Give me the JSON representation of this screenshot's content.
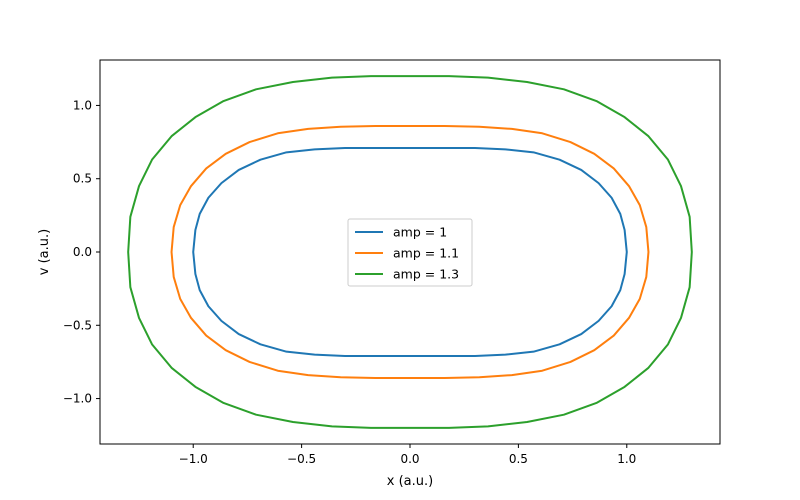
{
  "chart_data": {
    "type": "line",
    "title": "",
    "xlabel": "x (a.u.)",
    "ylabel": "v (a.u.)",
    "xlim": [
      -1.43,
      1.43
    ],
    "ylim": [
      -1.31,
      1.31
    ],
    "grid": false,
    "legend_position": "center",
    "xticks": [
      {
        "value": -1.0,
        "label": "−1.0"
      },
      {
        "value": -0.5,
        "label": "−0.5"
      },
      {
        "value": 0.0,
        "label": "0.0"
      },
      {
        "value": 0.5,
        "label": "0.5"
      },
      {
        "value": 1.0,
        "label": "1.0"
      }
    ],
    "yticks": [
      {
        "value": -1.0,
        "label": "−1.0"
      },
      {
        "value": -0.5,
        "label": "−0.5"
      },
      {
        "value": 0.0,
        "label": "0.0"
      },
      {
        "value": 0.5,
        "label": "0.5"
      },
      {
        "value": 1.0,
        "label": "1.0"
      }
    ],
    "series": [
      {
        "name": "amp = 1",
        "color": "#1f77b4",
        "x": [
          1.0,
          0.99,
          0.97,
          0.93,
          0.87,
          0.79,
          0.69,
          0.57,
          0.44,
          0.3,
          0.15,
          0.0,
          -0.15,
          -0.3,
          -0.44,
          -0.57,
          -0.69,
          -0.79,
          -0.87,
          -0.93,
          -0.97,
          -0.99,
          -1.0,
          -0.99,
          -0.97,
          -0.93,
          -0.87,
          -0.79,
          -0.69,
          -0.57,
          -0.44,
          -0.3,
          -0.15,
          0.0,
          0.15,
          0.3,
          0.44,
          0.57,
          0.69,
          0.79,
          0.87,
          0.93,
          0.97,
          0.99,
          1.0
        ],
        "y": [
          0.0,
          0.15,
          0.26,
          0.37,
          0.47,
          0.56,
          0.63,
          0.68,
          0.7,
          0.71,
          0.71,
          0.71,
          0.71,
          0.71,
          0.7,
          0.68,
          0.63,
          0.56,
          0.47,
          0.37,
          0.26,
          0.15,
          0.0,
          -0.15,
          -0.26,
          -0.37,
          -0.47,
          -0.56,
          -0.63,
          -0.68,
          -0.7,
          -0.71,
          -0.71,
          -0.71,
          -0.71,
          -0.71,
          -0.7,
          -0.68,
          -0.63,
          -0.56,
          -0.47,
          -0.37,
          -0.26,
          -0.15,
          0.0
        ]
      },
      {
        "name": "amp = 1.1",
        "color": "#ff7f0e",
        "x": [
          1.1,
          1.09,
          1.06,
          1.01,
          0.94,
          0.85,
          0.74,
          0.61,
          0.47,
          0.32,
          0.16,
          0.0,
          -0.16,
          -0.32,
          -0.47,
          -0.61,
          -0.74,
          -0.85,
          -0.94,
          -1.01,
          -1.06,
          -1.09,
          -1.1,
          -1.09,
          -1.06,
          -1.01,
          -0.94,
          -0.85,
          -0.74,
          -0.61,
          -0.47,
          -0.32,
          -0.16,
          0.0,
          0.16,
          0.32,
          0.47,
          0.61,
          0.74,
          0.85,
          0.94,
          1.01,
          1.06,
          1.09,
          1.1
        ],
        "y": [
          0.0,
          0.17,
          0.32,
          0.45,
          0.57,
          0.67,
          0.75,
          0.81,
          0.84,
          0.855,
          0.86,
          0.86,
          0.86,
          0.855,
          0.84,
          0.81,
          0.75,
          0.67,
          0.57,
          0.45,
          0.32,
          0.17,
          0.0,
          -0.17,
          -0.32,
          -0.45,
          -0.57,
          -0.67,
          -0.75,
          -0.81,
          -0.84,
          -0.855,
          -0.86,
          -0.86,
          -0.86,
          -0.855,
          -0.84,
          -0.81,
          -0.75,
          -0.67,
          -0.57,
          -0.45,
          -0.32,
          -0.17,
          0.0
        ]
      },
      {
        "name": "amp = 1.3",
        "color": "#2ca02c",
        "x": [
          1.3,
          1.29,
          1.25,
          1.19,
          1.1,
          0.99,
          0.86,
          0.71,
          0.54,
          0.36,
          0.18,
          0.0,
          -0.18,
          -0.36,
          -0.54,
          -0.71,
          -0.86,
          -0.99,
          -1.1,
          -1.19,
          -1.25,
          -1.29,
          -1.3,
          -1.29,
          -1.25,
          -1.19,
          -1.1,
          -0.99,
          -0.86,
          -0.71,
          -0.54,
          -0.36,
          -0.18,
          0.0,
          0.18,
          0.36,
          0.54,
          0.71,
          0.86,
          0.99,
          1.1,
          1.19,
          1.25,
          1.29,
          1.3
        ],
        "y": [
          0.0,
          0.24,
          0.45,
          0.63,
          0.79,
          0.92,
          1.03,
          1.11,
          1.16,
          1.19,
          1.2,
          1.2,
          1.2,
          1.19,
          1.16,
          1.11,
          1.03,
          0.92,
          0.79,
          0.63,
          0.45,
          0.24,
          0.0,
          -0.24,
          -0.45,
          -0.63,
          -0.79,
          -0.92,
          -1.03,
          -1.11,
          -1.16,
          -1.19,
          -1.2,
          -1.2,
          -1.2,
          -1.19,
          -1.16,
          -1.11,
          -1.03,
          -0.92,
          -0.79,
          -0.63,
          -0.45,
          -0.24,
          0.0
        ]
      }
    ]
  }
}
